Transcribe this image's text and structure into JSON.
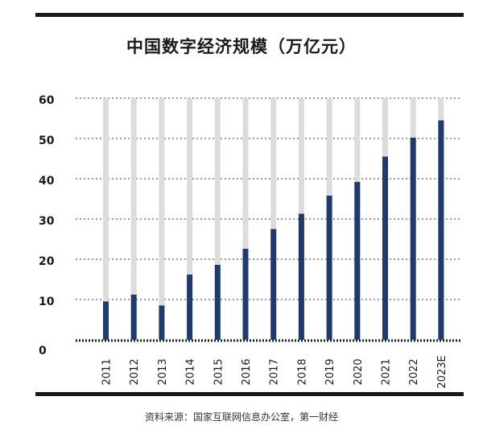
{
  "colors": {
    "bar": "#1f3a6e",
    "track": "#dcdcdc",
    "grid": "#7a7a7a",
    "rule": "#1a1a1a",
    "text": "#1a1a1a"
  },
  "chart_data": {
    "type": "bar",
    "title": "中国数字经济规模（万亿元）",
    "xlabel": "",
    "ylabel": "",
    "categories": [
      "2011",
      "2012",
      "2013",
      "2014",
      "2015",
      "2016",
      "2017",
      "2018",
      "2019",
      "2020",
      "2021",
      "2022",
      "2023E"
    ],
    "values": [
      9.5,
      11.2,
      8.5,
      16.2,
      18.6,
      22.6,
      27.5,
      31.3,
      35.8,
      39.2,
      45.5,
      50.2,
      54.5
    ],
    "ylim": [
      0,
      60
    ],
    "yticks": [
      0,
      10,
      20,
      30,
      40,
      50,
      60
    ],
    "grid": true,
    "legend": "none"
  },
  "source": "资料来源：国家互联网信息办公室，第一财经"
}
